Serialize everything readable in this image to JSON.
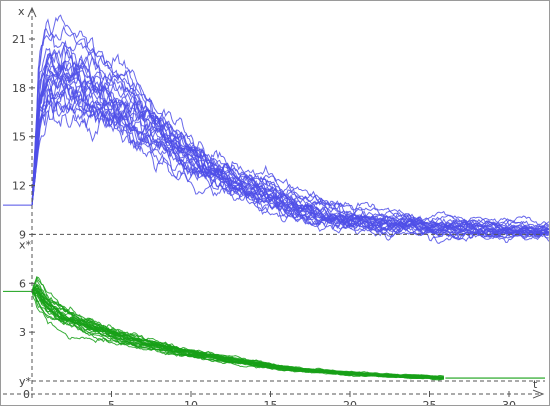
{
  "chart_data": {
    "type": "line",
    "title": "",
    "xlabel": "t",
    "ylabel": "x",
    "xlim": [
      -0.8,
      33
    ],
    "ylim": [
      -2.6,
      22.6
    ],
    "grid": false,
    "x_ticks": [
      "5",
      "10",
      "15",
      "20",
      "25",
      "30"
    ],
    "origin_label": "0",
    "y_ticks": [
      "3",
      "6",
      "9",
      "12",
      "15",
      "18",
      "21"
    ],
    "reference_lines": [
      {
        "label": "x*",
        "y": 9.0
      },
      {
        "label": "y*",
        "y": 0.0
      }
    ],
    "colors": {
      "x_paths": "#4f4fe8",
      "y_paths": "#17a017",
      "axes": "#555555"
    },
    "x_group": {
      "color": "#4f4fe8",
      "initial_value": 10.8,
      "equilibrium": 9.0,
      "n_paths": 26,
      "mean_path": {
        "t": [
          0,
          0.5,
          1,
          2,
          3,
          4,
          5,
          6,
          7,
          8,
          9,
          10,
          11,
          12,
          13,
          14,
          15,
          16,
          17,
          18,
          20,
          22,
          25,
          28,
          30,
          33
        ],
        "v": [
          10.8,
          16.5,
          18.0,
          18.2,
          17.8,
          17.1,
          16.6,
          16.1,
          15.4,
          14.8,
          14.1,
          13.4,
          12.8,
          12.3,
          11.8,
          11.4,
          11.0,
          10.6,
          10.3,
          10.1,
          9.8,
          9.6,
          9.35,
          9.2,
          9.15,
          9.1
        ]
      }
    },
    "y_group": {
      "color": "#17a017",
      "initial_value": 5.5,
      "equilibrium": 0.0,
      "n_paths": 26,
      "mean_path": {
        "t": [
          0,
          0.3,
          1,
          2,
          3,
          4,
          5,
          6,
          7,
          8,
          9,
          10,
          11,
          12,
          13,
          14,
          15,
          16,
          18,
          20,
          22,
          24,
          26,
          28,
          30,
          33
        ],
        "v": [
          5.5,
          5.4,
          4.5,
          3.9,
          3.5,
          3.2,
          2.9,
          2.6,
          2.3,
          2.1,
          1.9,
          1.7,
          1.5,
          1.35,
          1.2,
          1.05,
          0.9,
          0.78,
          0.6,
          0.45,
          0.33,
          0.25,
          0.18,
          0.12,
          0.08,
          0.05
        ]
      }
    }
  }
}
